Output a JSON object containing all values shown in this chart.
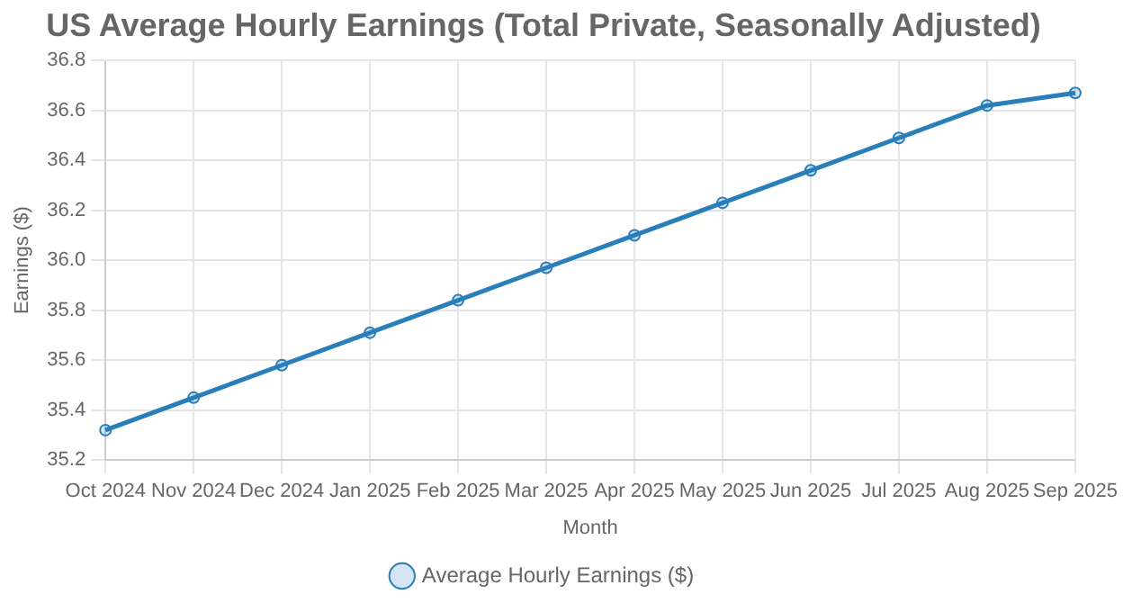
{
  "chart_data": {
    "type": "line",
    "title": "US Average Hourly Earnings (Total Private, Seasonally Adjusted)",
    "xlabel": "Month",
    "ylabel": "Earnings ($)",
    "categories": [
      "Oct 2024",
      "Nov 2024",
      "Dec 2024",
      "Jan 2025",
      "Feb 2025",
      "Mar 2025",
      "Apr 2025",
      "May 2025",
      "Jun 2025",
      "Jul 2025",
      "Aug 2025",
      "Sep 2025"
    ],
    "series": [
      {
        "name": "Average Hourly Earnings ($)",
        "color": "#2a7fba",
        "values": [
          35.32,
          35.45,
          35.58,
          35.71,
          35.84,
          35.97,
          36.1,
          36.23,
          36.36,
          36.49,
          36.62,
          36.67
        ]
      }
    ],
    "ylim": [
      35.2,
      36.8
    ],
    "yticks": [
      {
        "value": 35.2,
        "label": "35.2"
      },
      {
        "value": 35.4,
        "label": "35.4"
      },
      {
        "value": 35.6,
        "label": "35.6"
      },
      {
        "value": 35.8,
        "label": "35.8"
      },
      {
        "value": 36.0,
        "label": "36.0"
      },
      {
        "value": 36.2,
        "label": "36.2"
      },
      {
        "value": 36.4,
        "label": "36.4"
      },
      {
        "value": 36.6,
        "label": "36.6"
      },
      {
        "value": 36.8,
        "label": "36.8"
      }
    ],
    "grid": true,
    "legend": "bottom",
    "marker": "circle",
    "line_style": "solid"
  }
}
